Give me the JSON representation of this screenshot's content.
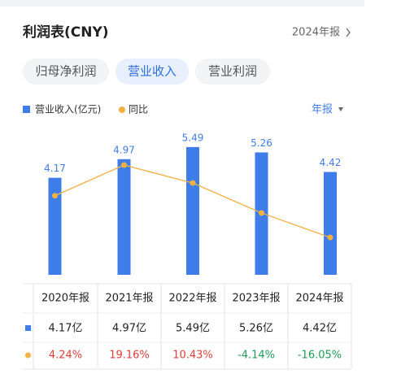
{
  "header": {
    "title": "利润表(CNY)",
    "period": "2024年报"
  },
  "tabs": [
    "归母净利润",
    "营业收入",
    "营业利润"
  ],
  "period_select": "年报",
  "chart_data": {
    "type": "bar_line",
    "categories": [
      "2020年报",
      "2021年报",
      "2022年报",
      "2023年报",
      "2024年报"
    ],
    "series": [
      {
        "name": "营业收入(亿元)",
        "color": "#3f7ee8",
        "values": [
          4.17,
          4.97,
          5.49,
          5.26,
          4.42
        ]
      },
      {
        "name": "同比",
        "color": "#f5b042",
        "axis": "y2",
        "values": [
          4.24,
          19.16,
          10.43,
          -4.14,
          -16.05
        ]
      }
    ],
    "ylim": [
      0,
      5.87
    ],
    "y2lim": [
      -34.2,
      32.2
    ]
  },
  "table": {
    "revenue": [
      "4.17亿",
      "4.97亿",
      "5.49亿",
      "5.26亿",
      "4.42亿"
    ],
    "yoy": [
      "4.24%",
      "19.16%",
      "10.43%",
      "-4.14%",
      "-16.05%"
    ]
  }
}
